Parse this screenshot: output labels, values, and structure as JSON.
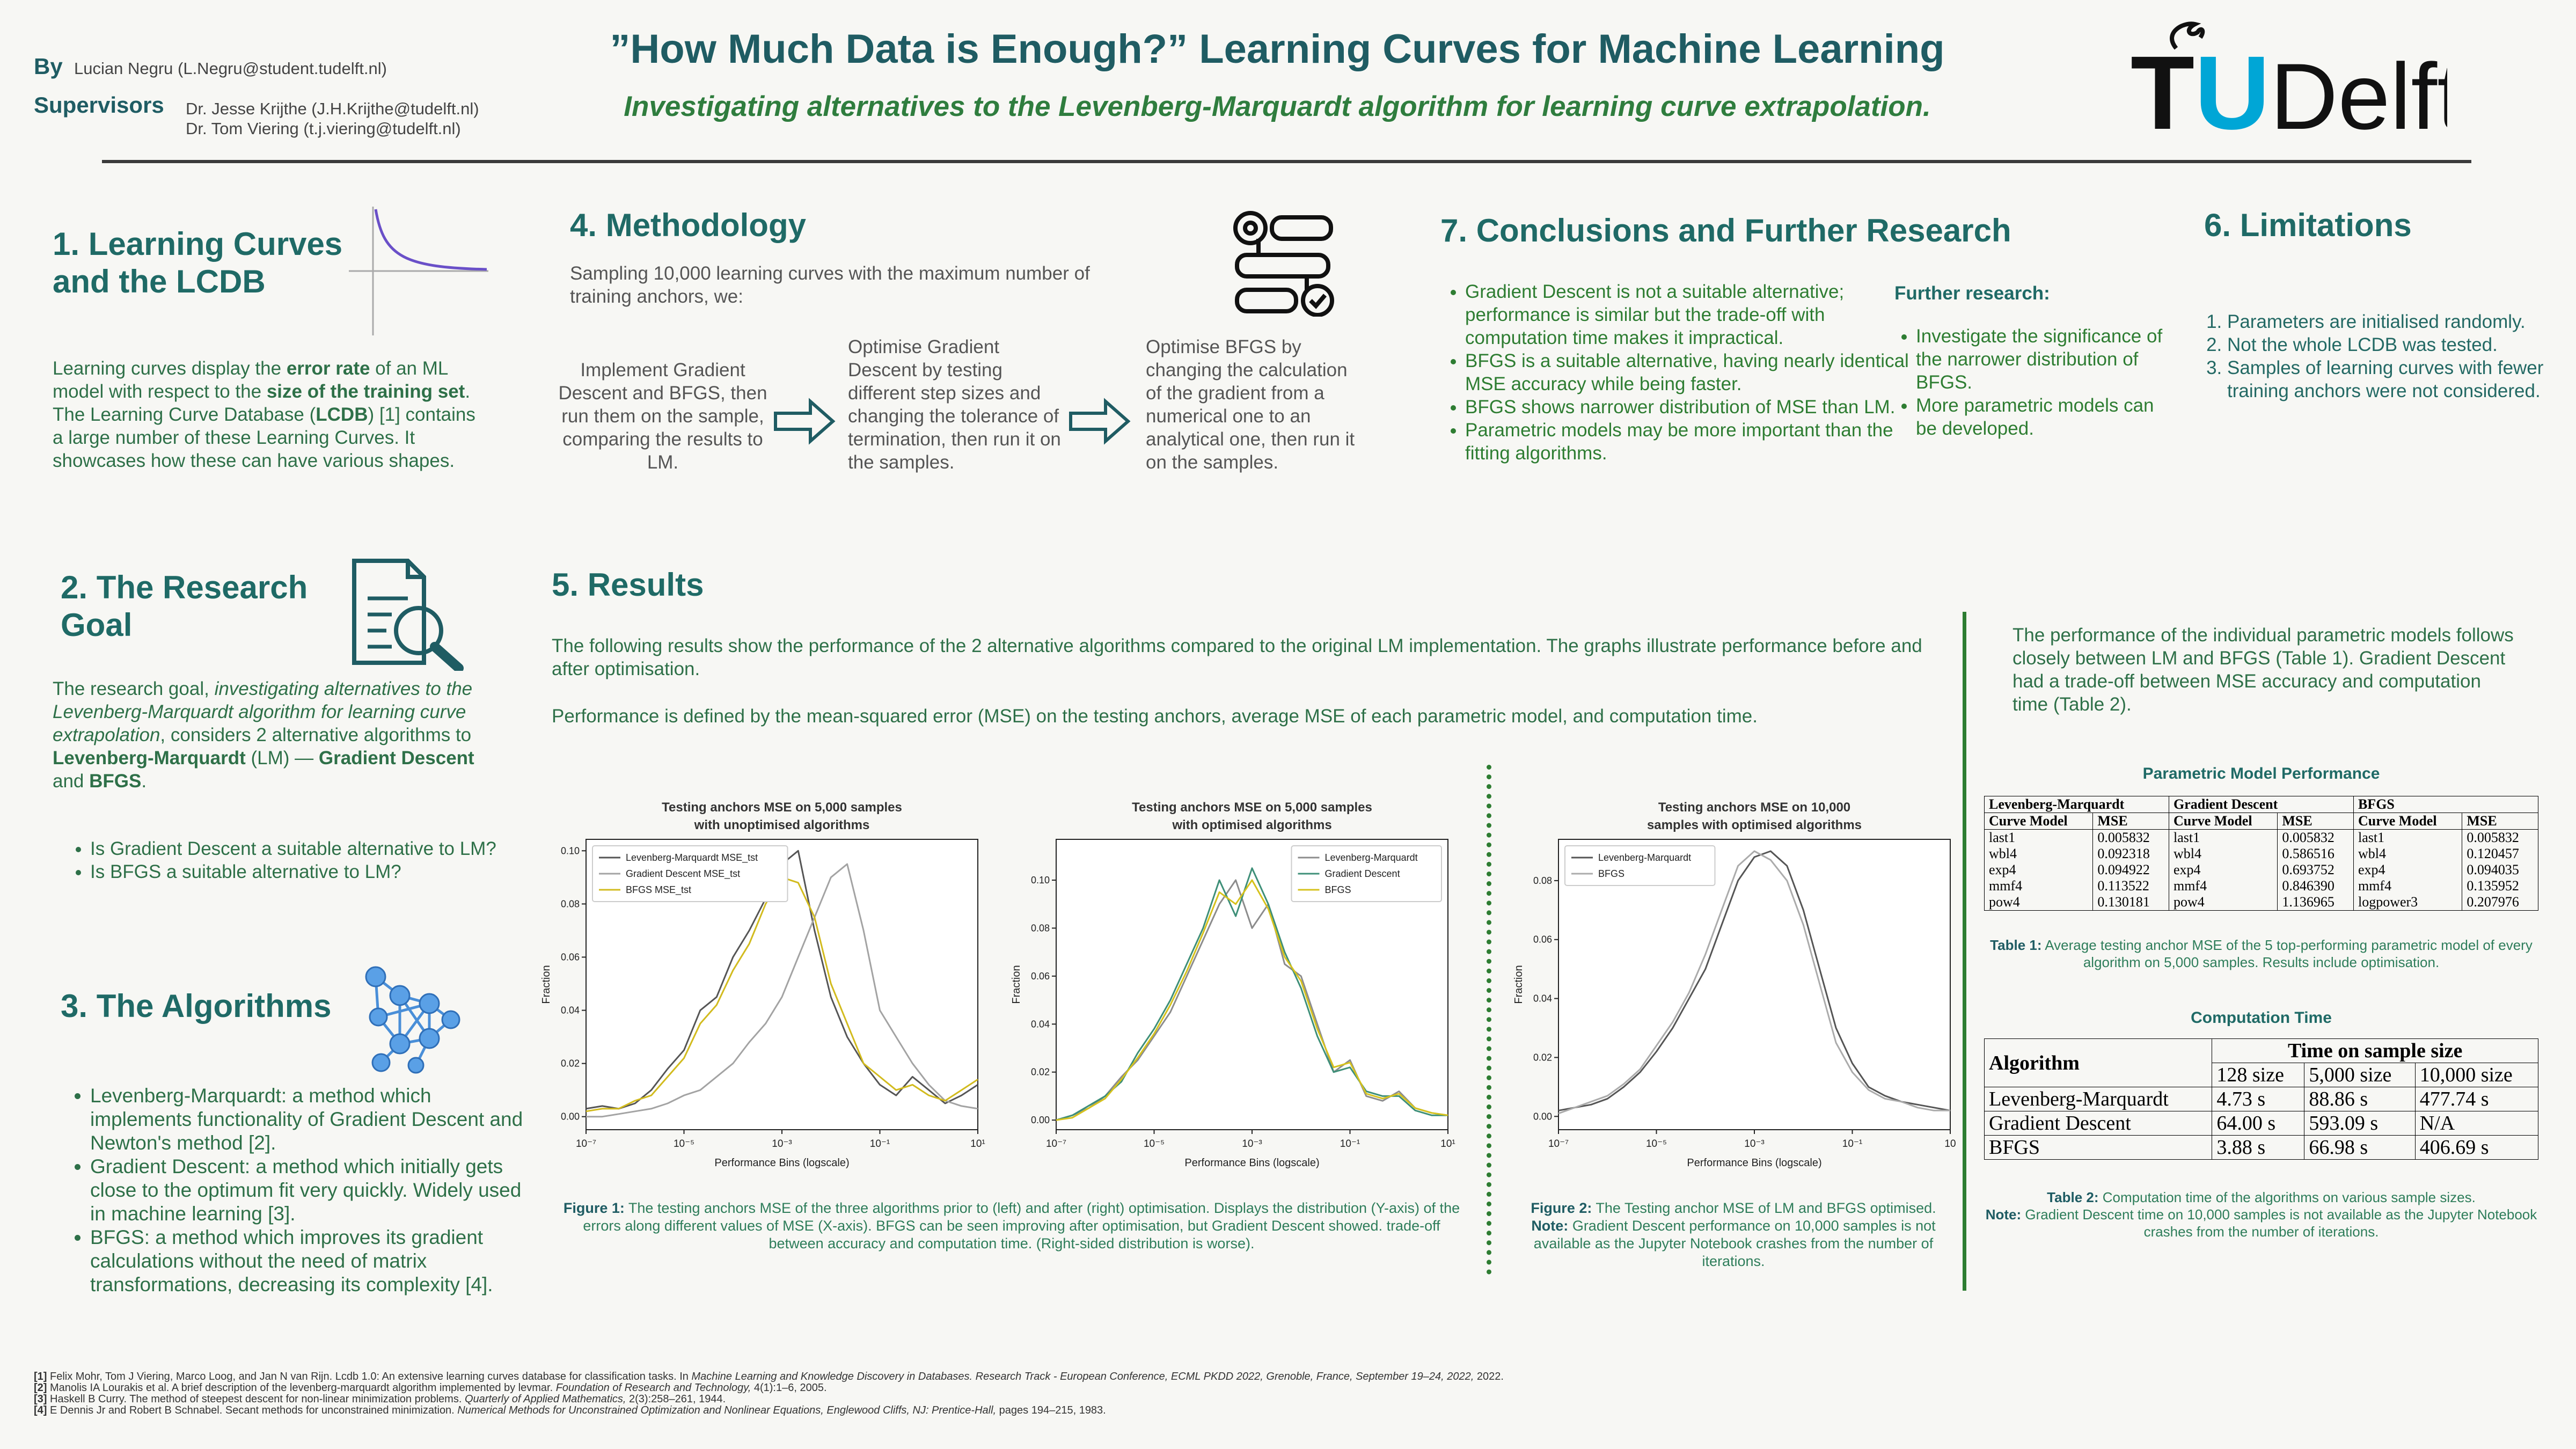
{
  "header": {
    "by_label": "By",
    "author": "Lucian Negru (L.Negru@student.tudelft.nl)",
    "supervisors_label": "Supervisors",
    "supervisors": [
      "Dr. Jesse Krijthe (J.H.Krijthe@tudelft.nl)",
      "Dr. Tom Viering (t.j.viering@tudelft.nl)"
    ],
    "title": "”How Much Data is Enough?” Learning Curves for Machine Learning",
    "subtitle": "Investigating alternatives to the Levenberg-Marquardt algorithm for learning curve extrapolation.",
    "logo": [
      "T",
      "U",
      "Delft"
    ]
  },
  "section_1": {
    "heading": "1. Learning Curves and the LCDB",
    "body": [
      {
        "text": "Learning curves display the "
      },
      {
        "text": "error rate",
        "b": true
      },
      {
        "text": " of an ML model with respect to the "
      },
      {
        "text": "size of the training set",
        "b": true
      },
      {
        "text": ". The Learning Curve Database ("
      },
      {
        "text": "LCDB",
        "b": true
      },
      {
        "text": ") [1] contains a large number of these Learning Curves. It showcases how these can have various shapes."
      }
    ]
  },
  "section_2": {
    "heading": "2. The Research Goal",
    "body": [
      {
        "text": "The research goal, "
      },
      {
        "text": "investigating alternatives to the Levenberg-Marquardt algorithm for learning curve extrapolation",
        "i": true
      },
      {
        "text": ", considers 2 alternative algorithms to "
      },
      {
        "text": "Levenberg-Marquardt",
        "b": true
      },
      {
        "text": " (LM) — "
      },
      {
        "text": "Gradient Descent",
        "b": true
      },
      {
        "text": " and "
      },
      {
        "text": "BFGS",
        "b": true
      },
      {
        "text": "."
      }
    ],
    "questions": [
      "Is Gradient Descent a suitable alternative to LM?",
      "Is BFGS a suitable alternative to LM?"
    ]
  },
  "section_3": {
    "heading": "3. The Algorithms",
    "items": [
      "Levenberg-Marquardt: a method which implements functionality of Gradient Descent and Newton's method [2].",
      "Gradient Descent: a method which initially gets close to the optimum fit very quickly. Widely used in machine learning [3].",
      "BFGS: a method which improves its gradient calculations without the need of matrix transformations, decreasing its complexity [4]."
    ]
  },
  "section_4": {
    "heading": "4. Methodology",
    "intro": "Sampling 10,000 learning curves with the maximum number of training anchors, we:",
    "steps": [
      "Implement Gradient Descent and BFGS, then run them on the sample, comparing the results to LM.",
      "Optimise Gradient Descent by testing different step sizes and changing the tolerance of termination, then run it on the samples.",
      "Optimise BFGS by changing the calculation of the gradient from a numerical one to an analytical one, then run it on the samples."
    ]
  },
  "section_5": {
    "heading": "5. Results",
    "paragraphs": [
      "The following results show the performance of the 2 alternative algorithms compared to the original LM implementation. The graphs illustrate performance before and after optimisation.",
      "Performance is defined by the mean-squared error (MSE) on the testing anchors, average MSE of each parametric model, and computation time."
    ],
    "figure_1_caption": [
      {
        "text": "Figure 1:",
        "b": true
      },
      {
        "text": "  The testing anchors MSE of the three algorithms prior to (left) and after (right) optimisation. Displays the distribution (Y-axis) of the errors along different values of MSE (X-axis). BFGS can be seen improving after optimisation, but Gradient Descent showed. trade-off between accuracy and computation time. (Right-sided distribution is worse)."
      }
    ],
    "figure_2_caption": [
      {
        "text": "Figure 2:",
        "b": true
      },
      {
        "text": "  The Testing anchor MSE of LM and BFGS optimised."
      }
    ],
    "figure_2_note": [
      {
        "text": "Note:",
        "b": true
      },
      {
        "text": " Gradient Descent performance on 10,000 samples is not available as the Jupyter Notebook crashes from the number of iterations."
      }
    ],
    "summary": "The performance of the individual parametric models follows closely between LM and BFGS (Table 1). Gradient Descent had a trade-off between MSE accuracy and computation time (Table 2).",
    "table_1": {
      "title": "Parametric Model Performance",
      "groups": [
        "Levenberg-Marquardt",
        "Gradient Descent",
        "BFGS"
      ],
      "columns": [
        "Curve Model",
        "MSE",
        "Curve Model",
        "MSE",
        "Curve Model",
        "MSE"
      ],
      "rows": [
        [
          "last1",
          "0.005832",
          "last1",
          "0.005832",
          "last1",
          "0.005832"
        ],
        [
          "wbl4",
          "0.092318",
          "wbl4",
          "0.586516",
          "wbl4",
          "0.120457"
        ],
        [
          "exp4",
          "0.094922",
          "exp4",
          "0.693752",
          "exp4",
          "0.094035"
        ],
        [
          "mmf4",
          "0.113522",
          "mmf4",
          "0.846390",
          "mmf4",
          "0.135952"
        ],
        [
          "pow4",
          "0.130181",
          "pow4",
          "1.136965",
          "logpower3",
          "0.207976"
        ]
      ],
      "caption": [
        {
          "text": "Table 1:",
          "b": true
        },
        {
          "text": " Average testing anchor MSE of the 5 top-performing parametric model of every algorithm on 5,000 samples. Results include optimisation."
        }
      ]
    },
    "table_2": {
      "title": "Computation Time",
      "header": "Algorithm",
      "group": "Time on sample size",
      "columns": [
        "128 size",
        "5,000 size",
        "10,000 size"
      ],
      "rows": [
        [
          "Levenberg-Marquardt",
          "4.73 s",
          "88.86 s",
          "477.74 s"
        ],
        [
          "Gradient Descent",
          "64.00 s",
          "593.09 s",
          "N/A"
        ],
        [
          "BFGS",
          "3.88 s",
          "66.98 s",
          "406.69 s"
        ]
      ],
      "caption": [
        {
          "text": "Table 2:",
          "b": true
        },
        {
          "text": " Computation time of the algorithms on various sample sizes."
        }
      ],
      "note": [
        {
          "text": "Note:",
          "b": true
        },
        {
          "text": " Gradient Descent time on 10,000 samples is not available as the Jupyter Notebook crashes from the number of iterations."
        }
      ]
    }
  },
  "section_6": {
    "heading": "6. Limitations",
    "items": [
      "Parameters are initialised randomly.",
      "Not the whole LCDB was tested.",
      "Samples of learning curves with fewer training anchors were not considered."
    ]
  },
  "section_7": {
    "heading": "7. Conclusions and Further Research",
    "items": [
      "Gradient Descent is not a suitable alternative; performance is similar but the trade-off with computation time makes it impractical.",
      "BFGS is a suitable alternative, having nearly identical MSE accuracy while being faster.",
      "BFGS shows narrower distribution of MSE than LM.",
      "Parametric models may be more important than the fitting algorithms."
    ],
    "further_heading": "Further research:",
    "further_items": [
      "Investigate the significance of the narrower distribution of BFGS.",
      "More parametric models can be developed."
    ]
  },
  "references": [
    [
      {
        "text": "[1]",
        "b": true
      },
      {
        "text": " Felix Mohr, Tom J Viering, Marco Loog, and Jan N van Rijn. Lcdb 1.0: An extensive learning curves database for classification tasks. In "
      },
      {
        "text": "Machine Learning and Knowledge Discovery in Databases. Research Track - European Conference, ECML PKDD 2022, Grenoble, France, September 19–24, 2022,",
        "i": true
      },
      {
        "text": " 2022."
      }
    ],
    [
      {
        "text": "[2]",
        "b": true
      },
      {
        "text": " Manolis IA Lourakis et al. A brief description of the levenberg-marquardt algorithm implemented by levmar. "
      },
      {
        "text": "Foundation of Research and Technology,",
        "i": true
      },
      {
        "text": " 4(1):1–6, 2005."
      }
    ],
    [
      {
        "text": "[3]",
        "b": true
      },
      {
        "text": " Haskell B Curry. The method of steepest descent for non-linear minimization problems. "
      },
      {
        "text": "Quarterly of Applied Mathematics,",
        "i": true
      },
      {
        "text": " 2(3):258–261, 1944."
      }
    ],
    [
      {
        "text": "[4]",
        "b": true
      },
      {
        "text": " E Dennis Jr and Robert B Schnabel. Secant methods for unconstrained minimization. "
      },
      {
        "text": "Numerical Methods for Unconstrained Optimization and Nonlinear Equations, Englewood Cliffs, NJ: Prentice-Hall,",
        "i": true
      },
      {
        "text": " pages 194–215, 1983."
      }
    ]
  ],
  "chart_data": [
    {
      "type": "line",
      "title": [
        "Testing anchors MSE on 5,000 samples",
        "with unoptimised algorithms"
      ],
      "xlabel": "Performance Bins (logscale)",
      "ylabel": "Fraction",
      "xscale": "log",
      "x": [
        1e-07,
        2.15e-07,
        4.64e-07,
        1e-06,
        2.15e-06,
        4.64e-06,
        1e-05,
        2.15e-05,
        4.64e-05,
        0.0001,
        0.000215,
        0.000464,
        0.001,
        0.00215,
        0.00464,
        0.01,
        0.0215,
        0.0464,
        0.1,
        0.215,
        0.464,
        1,
        2.15,
        4.64,
        10
      ],
      "xlim": [
        1e-07,
        10
      ],
      "xticks": [
        {
          "value": 1e-07,
          "label": "10⁻⁷"
        },
        {
          "value": 1e-05,
          "label": "10⁻⁵"
        },
        {
          "value": 0.001,
          "label": "10⁻³"
        },
        {
          "value": 0.1,
          "label": "10⁻¹"
        },
        {
          "value": 10,
          "label": "10¹"
        }
      ],
      "ylim": [
        -0.0049,
        0.1043
      ],
      "yticks": [
        {
          "value": 0,
          "label": "0.00"
        },
        0.02,
        0.04,
        0.06,
        0.08,
        {
          "value": 0.1,
          "label": "0.10"
        }
      ],
      "legend": "upper left",
      "series": [
        {
          "name": "Levenberg-Marquardt MSE_tst",
          "color": "#555555",
          "values": [
            0.003,
            0.004,
            0.003,
            0.005,
            0.01,
            0.018,
            0.025,
            0.04,
            0.045,
            0.06,
            0.07,
            0.082,
            0.095,
            0.1,
            0.07,
            0.045,
            0.03,
            0.02,
            0.012,
            0.008,
            0.015,
            0.01,
            0.005,
            0.008,
            0.012
          ]
        },
        {
          "name": "Gradient Descent MSE_tst",
          "color": "#a3a3a3",
          "values": [
            0.0,
            0.0,
            0.001,
            0.002,
            0.003,
            0.005,
            0.008,
            0.01,
            0.015,
            0.02,
            0.028,
            0.035,
            0.045,
            0.06,
            0.075,
            0.09,
            0.095,
            0.07,
            0.04,
            0.03,
            0.02,
            0.012,
            0.006,
            0.004,
            0.003
          ]
        },
        {
          "name": "BFGS MSE_tst",
          "color": "#d2bb1e",
          "values": [
            0.002,
            0.003,
            0.003,
            0.006,
            0.008,
            0.015,
            0.022,
            0.035,
            0.042,
            0.055,
            0.065,
            0.08,
            0.09,
            0.088,
            0.075,
            0.05,
            0.035,
            0.02,
            0.015,
            0.01,
            0.012,
            0.008,
            0.006,
            0.01,
            0.014
          ]
        }
      ]
    },
    {
      "type": "line",
      "title": [
        "Testing anchors MSE on 5,000 samples",
        "with optimised algorithms"
      ],
      "xlabel": "Performance Bins (logscale)",
      "ylabel": "Fraction",
      "xscale": "log",
      "x": [
        1e-07,
        2.15e-07,
        4.64e-07,
        1e-06,
        2.15e-06,
        4.64e-06,
        1e-05,
        2.15e-05,
        4.64e-05,
        0.0001,
        0.000215,
        0.000464,
        0.001,
        0.00215,
        0.00464,
        0.01,
        0.0215,
        0.0464,
        0.1,
        0.215,
        0.464,
        1,
        2.15,
        4.64,
        10
      ],
      "xlim": [
        1e-07,
        10
      ],
      "xticks": [
        {
          "value": 1e-07,
          "label": "10⁻⁷"
        },
        {
          "value": 1e-05,
          "label": "10⁻⁵"
        },
        {
          "value": 0.001,
          "label": "10⁻³"
        },
        {
          "value": 0.1,
          "label": "10⁻¹"
        },
        {
          "value": 10,
          "label": "10¹"
        }
      ],
      "ylim": [
        -0.004,
        0.117
      ],
      "yticks": [
        {
          "value": 0,
          "label": "0.00"
        },
        0.02,
        0.04,
        0.06,
        0.08,
        {
          "value": 0.1,
          "label": "0.10"
        }
      ],
      "legend": "upper right",
      "series": [
        {
          "name": "Levenberg-Marquardt",
          "color": "#8c8c8c",
          "values": [
            0.0,
            0.002,
            0.005,
            0.01,
            0.018,
            0.025,
            0.035,
            0.045,
            0.06,
            0.075,
            0.09,
            0.1,
            0.08,
            0.09,
            0.065,
            0.06,
            0.04,
            0.02,
            0.025,
            0.01,
            0.008,
            0.012,
            0.005,
            0.003,
            0.002
          ]
        },
        {
          "name": "Gradient Descent",
          "color": "#3e8f78",
          "values": [
            0.0,
            0.002,
            0.006,
            0.01,
            0.016,
            0.028,
            0.038,
            0.05,
            0.065,
            0.08,
            0.1,
            0.085,
            0.105,
            0.09,
            0.07,
            0.055,
            0.035,
            0.02,
            0.022,
            0.012,
            0.01,
            0.01,
            0.004,
            0.002,
            0.002
          ]
        },
        {
          "name": "BFGS",
          "color": "#d6c21c",
          "values": [
            0.0,
            0.001,
            0.005,
            0.009,
            0.017,
            0.026,
            0.036,
            0.048,
            0.062,
            0.078,
            0.095,
            0.09,
            0.1,
            0.088,
            0.068,
            0.058,
            0.038,
            0.022,
            0.024,
            0.011,
            0.009,
            0.011,
            0.005,
            0.003,
            0.002
          ]
        }
      ]
    },
    {
      "type": "line",
      "title": [
        "Testing anchors MSE on 10,000",
        "samples with optimised algorithms"
      ],
      "xlabel": "Performance Bins (logscale)",
      "ylabel": "Fraction",
      "xscale": "log",
      "x": [
        1e-07,
        2.15e-07,
        4.64e-07,
        1e-06,
        2.15e-06,
        4.64e-06,
        1e-05,
        2.15e-05,
        4.64e-05,
        0.0001,
        0.000215,
        0.000464,
        0.001,
        0.00215,
        0.00464,
        0.01,
        0.0215,
        0.0464,
        0.1,
        0.215,
        0.464,
        1,
        2.15,
        4.64,
        10
      ],
      "xlim": [
        1e-07,
        10
      ],
      "xticks": [
        {
          "value": 1e-07,
          "label": "10⁻⁷"
        },
        {
          "value": 1e-05,
          "label": "10⁻⁵"
        },
        {
          "value": 0.001,
          "label": "10⁻³"
        },
        {
          "value": 0.1,
          "label": "10⁻¹"
        },
        10
      ],
      "ylim": [
        -0.0045,
        0.094
      ],
      "yticks": [
        {
          "value": 0,
          "label": "0.00"
        },
        0.02,
        0.04,
        0.06,
        0.08
      ],
      "legend": "upper left",
      "series": [
        {
          "name": "Levenberg-Marquardt",
          "color": "#555555",
          "values": [
            0.002,
            0.003,
            0.004,
            0.006,
            0.01,
            0.015,
            0.022,
            0.03,
            0.04,
            0.05,
            0.065,
            0.08,
            0.088,
            0.09,
            0.085,
            0.07,
            0.05,
            0.03,
            0.018,
            0.01,
            0.007,
            0.005,
            0.004,
            0.003,
            0.002
          ]
        },
        {
          "name": "BFGS",
          "color": "#ababab",
          "values": [
            0.001,
            0.003,
            0.005,
            0.007,
            0.011,
            0.016,
            0.024,
            0.032,
            0.042,
            0.055,
            0.07,
            0.085,
            0.09,
            0.087,
            0.08,
            0.065,
            0.045,
            0.025,
            0.015,
            0.009,
            0.006,
            0.005,
            0.003,
            0.002,
            0.002
          ]
        }
      ]
    }
  ]
}
